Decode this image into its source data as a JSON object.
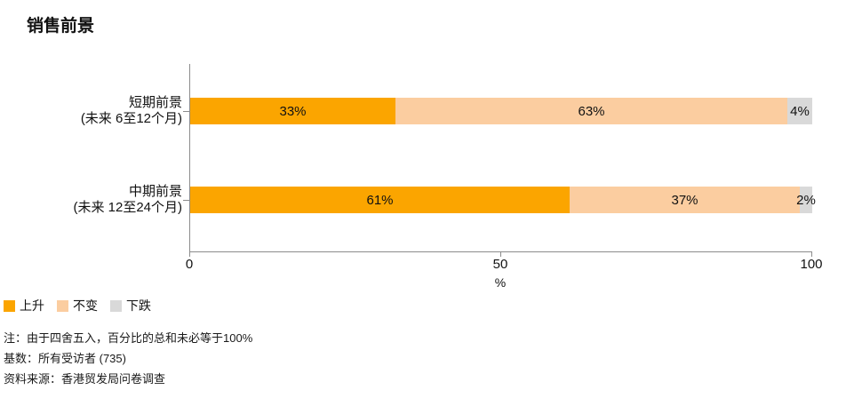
{
  "title": "销售前景",
  "chart_data": {
    "type": "bar",
    "orientation": "horizontal",
    "stacked": true,
    "title": "销售前景",
    "xlabel": "%",
    "xlim": [
      0,
      100
    ],
    "xticks": [
      "0",
      "50",
      "100"
    ],
    "grid": false,
    "legend_position": "bottom-left",
    "categories": [
      {
        "line1": "短期前景",
        "line2": "(未来 6至12个月)"
      },
      {
        "line1": "中期前景",
        "line2": "(未来 12至24个月)"
      }
    ],
    "series": [
      {
        "name": "上升",
        "color": "#FBA500",
        "values": [
          33,
          61
        ],
        "labels": [
          "33%",
          "61%"
        ]
      },
      {
        "name": "不变",
        "color": "#FBCDA0",
        "values": [
          63,
          37
        ],
        "labels": [
          "63%",
          "37%"
        ]
      },
      {
        "name": "下跌",
        "color": "#D9D9D9",
        "values": [
          4,
          2
        ],
        "labels": [
          "4%",
          "2%"
        ]
      }
    ]
  },
  "legend": [
    {
      "label": "上升",
      "color": "#FBA500"
    },
    {
      "label": "不变",
      "color": "#FBCDA0"
    },
    {
      "label": "下跌",
      "color": "#D9D9D9"
    }
  ],
  "notes": {
    "line1": "注：由于四舍五入，百分比的总和未必等于100%",
    "line2": "基数：所有受访者 (735)",
    "line3": "资料来源：香港贸发局问卷调查"
  }
}
